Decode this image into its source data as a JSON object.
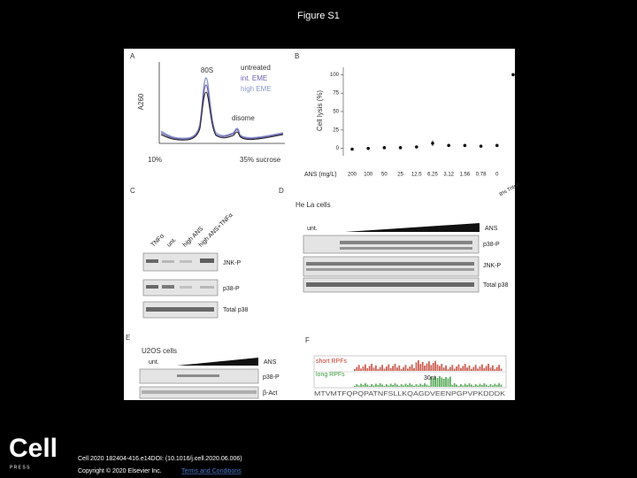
{
  "slide": {
    "title": "Figure S1",
    "logo": "Cell",
    "logo_sub": "P R E S S",
    "citation": "Cell 2020 182404-416.e14DOI: (10.1016/j.cell.2020.06.006)",
    "copyright": "Copyright © 2020 Elsevier Inc.",
    "link": "Terms and Conditions"
  },
  "panels": {
    "a": {
      "letter": "A",
      "peak_label": "80S",
      "legend": [
        "untreated",
        "int. EME",
        "high EME"
      ],
      "disome": "disome",
      "y_label": "A260",
      "x_start": "10%",
      "x_end": "35% sucrose"
    },
    "b": {
      "letter": "B",
      "type": "scatter",
      "y_label": "Cell lysis (%)",
      "x_label": "ANS (mg/L)",
      "categories": [
        "200",
        "100",
        "50",
        "25",
        "12.5",
        "6.25",
        "3.12",
        "1.56",
        "0.78",
        "0",
        "8% Triton"
      ],
      "values": [
        -1,
        0,
        1,
        1,
        2,
        7,
        4,
        4,
        3,
        4,
        100
      ],
      "errors": [
        1,
        1,
        1,
        1,
        1,
        4,
        1,
        1,
        1,
        1,
        1
      ],
      "ylim": [
        -10,
        110
      ],
      "yticks": [
        0,
        25,
        50,
        75,
        100
      ],
      "color": "#111111"
    },
    "c": {
      "letter": "C",
      "lanes": [
        "TNFα",
        "unt.",
        "high ANS",
        "high ANS+TNFα"
      ],
      "blots": [
        "JNK-P",
        "p38-P",
        "Total p38"
      ]
    },
    "d": {
      "letter": "D",
      "cells": "He La cells",
      "untreated": "unt.",
      "treatment": "ANS",
      "blots": [
        "p38-P",
        "JNK-P",
        "Total p38"
      ]
    },
    "e": {
      "letter": "E",
      "cells": "U2OS cells",
      "untreated": "unt.",
      "treatment": "ANS",
      "blots": [
        "p38-P",
        "β-Act"
      ]
    },
    "f": {
      "letter": "F",
      "short": "short RPFs",
      "long": "long RPFs",
      "marker": "30nt",
      "sequence": "MTVMTFQPQPATNFSLLKQAGDVEENPGPVPKDDDK"
    }
  }
}
